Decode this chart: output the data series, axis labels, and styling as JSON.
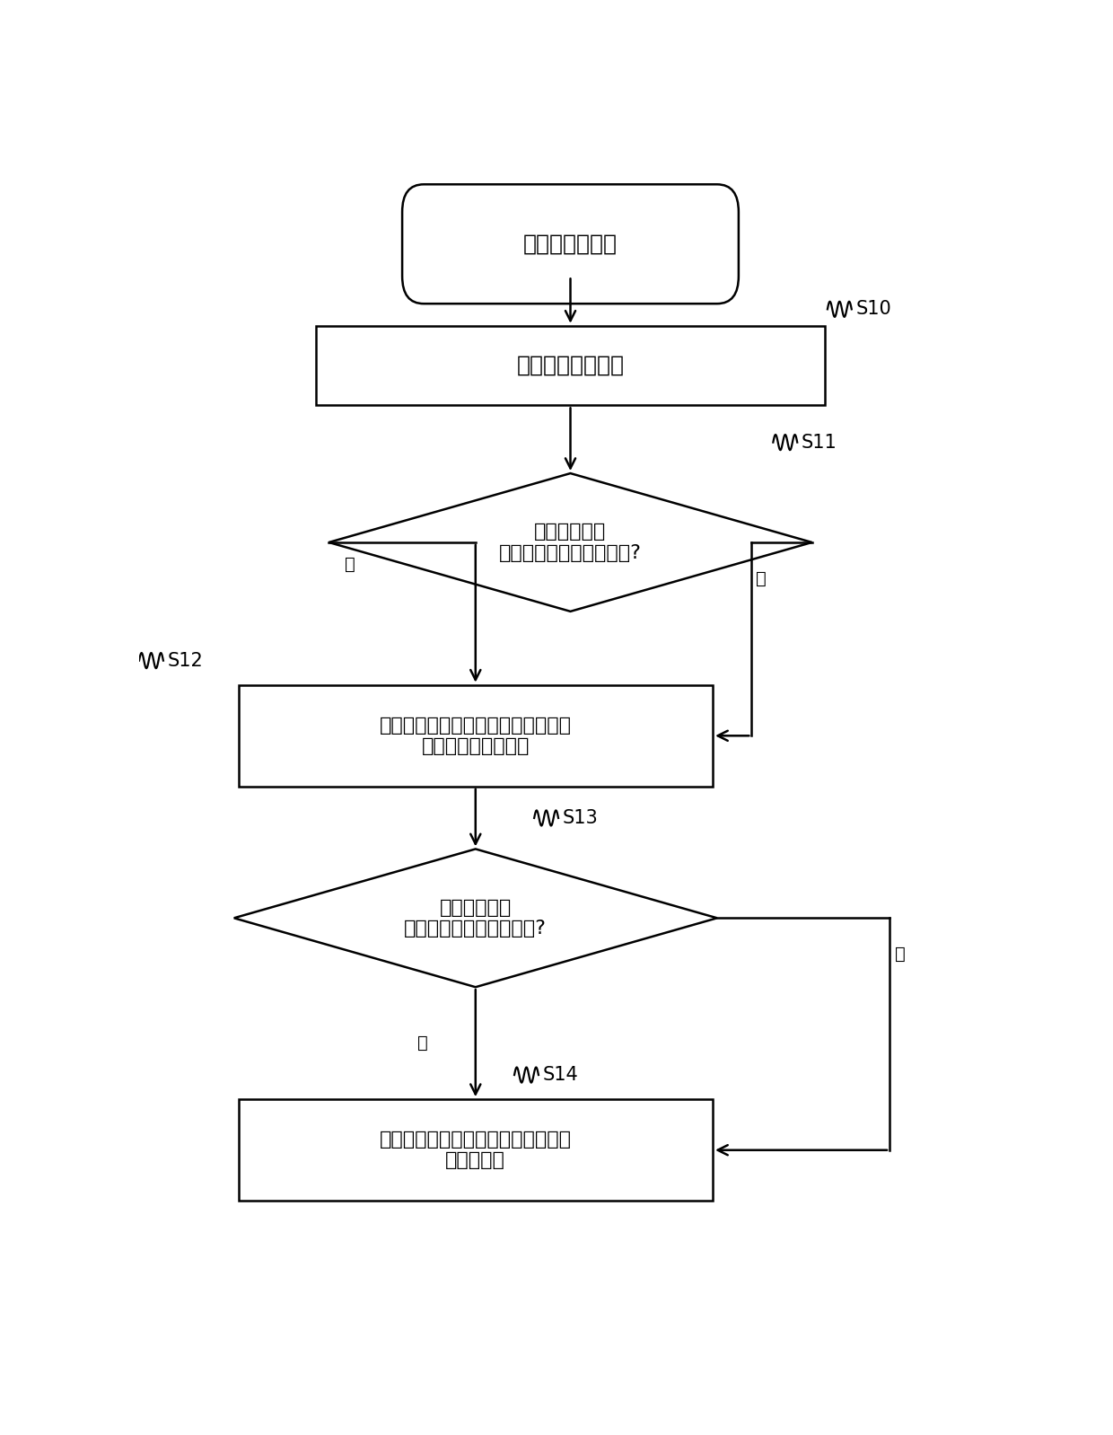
{
  "bg_color": "#ffffff",
  "ec": "#000000",
  "fc": "#ffffff",
  "lw": 1.8,
  "start_text": "多联机系统上电",
  "s10_text": "获取系统能力需求",
  "s11_text": "系统能力需求\n小于系统能力需求预设值?",
  "s12_text": "控制室内机蒸发器的入口的电子膨胀\n阀减小第一预设开度",
  "s13_text": "系统能力需求\n小于系统能力需求预设值?",
  "s14_text": "控制室内机蒸发器的入口的电子膨胀\n阀恢复正常",
  "yes_text": "是",
  "no_text": "否",
  "labels": [
    "S10",
    "S11",
    "S12",
    "S13",
    "S14"
  ],
  "font_size_large": 18,
  "font_size_medium": 16,
  "font_size_label": 15,
  "font_size_branch": 14
}
